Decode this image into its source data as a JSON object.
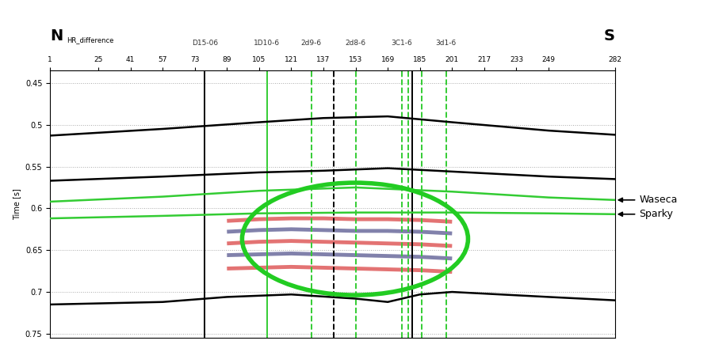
{
  "chart_data": {
    "type": "line",
    "title_left": "N",
    "title_right": "S",
    "section_label": "HR_difference",
    "ylabel": "Time [s]",
    "xlim": [
      1,
      282
    ],
    "xticks": [
      1,
      25,
      41,
      57,
      73,
      89,
      105,
      121,
      137,
      153,
      169,
      185,
      201,
      217,
      233,
      249,
      282
    ],
    "ylim": [
      0.755,
      0.435
    ],
    "yticks": [
      0.45,
      0.5,
      0.55,
      0.6,
      0.65,
      0.7,
      0.75
    ],
    "grid": true,
    "series": [
      {
        "color": "#000000",
        "line_style": "solid",
        "x": [
          1,
          57,
          105,
          137,
          169,
          201,
          249,
          282
        ],
        "values": [
          0.513,
          0.505,
          0.497,
          0.492,
          0.49,
          0.497,
          0.507,
          0.512
        ]
      },
      {
        "color": "#000000",
        "line_style": "solid",
        "x": [
          1,
          57,
          105,
          137,
          169,
          201,
          249,
          282
        ],
        "values": [
          0.567,
          0.562,
          0.557,
          0.555,
          0.552,
          0.556,
          0.562,
          0.565
        ]
      },
      {
        "name": "Waseca",
        "color": "#33cc33",
        "line_style": "solid",
        "x": [
          1,
          57,
          105,
          153,
          201,
          249,
          282
        ],
        "values": [
          0.592,
          0.586,
          0.579,
          0.575,
          0.58,
          0.587,
          0.59
        ]
      },
      {
        "name": "Sparky",
        "color": "#33cc33",
        "line_style": "solid",
        "x": [
          1,
          57,
          105,
          153,
          201,
          249,
          282
        ],
        "values": [
          0.612,
          0.609,
          0.606,
          0.605,
          0.605,
          0.606,
          0.607
        ]
      },
      {
        "color": "#000000",
        "line_style": "solid",
        "x": [
          1,
          57,
          89,
          121,
          153,
          169,
          185,
          201,
          249,
          282
        ],
        "values": [
          0.715,
          0.712,
          0.706,
          0.703,
          0.708,
          0.712,
          0.703,
          0.7,
          0.706,
          0.71
        ]
      }
    ],
    "reflectors": [
      {
        "color": "#cc0000",
        "x": [
          89,
          105,
          121,
          137,
          153,
          169,
          185,
          201
        ],
        "values": [
          0.615,
          0.613,
          0.612,
          0.612,
          0.613,
          0.613,
          0.614,
          0.616
        ]
      },
      {
        "color": "#1a1a66",
        "x": [
          89,
          105,
          121,
          137,
          153,
          169,
          185,
          201
        ],
        "values": [
          0.628,
          0.626,
          0.625,
          0.626,
          0.627,
          0.627,
          0.628,
          0.63
        ]
      },
      {
        "color": "#cc0000",
        "x": [
          89,
          105,
          121,
          137,
          153,
          169,
          185,
          201
        ],
        "values": [
          0.642,
          0.64,
          0.639,
          0.64,
          0.641,
          0.642,
          0.643,
          0.645
        ]
      },
      {
        "color": "#1a1a66",
        "x": [
          89,
          105,
          121,
          137,
          153,
          169,
          185,
          201
        ],
        "values": [
          0.656,
          0.655,
          0.654,
          0.655,
          0.656,
          0.657,
          0.658,
          0.66
        ]
      },
      {
        "color": "#cc0000",
        "x": [
          89,
          105,
          121,
          137,
          153,
          169,
          185,
          201
        ],
        "values": [
          0.672,
          0.671,
          0.67,
          0.671,
          0.672,
          0.673,
          0.674,
          0.676
        ]
      }
    ],
    "wells": [
      {
        "name": "D15-06",
        "x": 78,
        "color": "#000000",
        "line_style": "solid"
      },
      {
        "name": "1D10-6",
        "x": 109,
        "color": "#33cc33",
        "line_style": "solid"
      },
      {
        "name": "2d9-6",
        "x": 131,
        "color": "#33cc33",
        "line_style": "dashed"
      },
      {
        "x": 142,
        "color": "#000000",
        "line_style": "dashed"
      },
      {
        "name": "2d8-6",
        "x": 153,
        "color": "#33cc33",
        "line_style": "dashed"
      },
      {
        "name": "3C1-6",
        "x": 176,
        "color": "#33cc33",
        "line_style": "dashed"
      },
      {
        "x": 179,
        "color": "#33cc33",
        "line_style": "dashed"
      },
      {
        "x": 181,
        "color": "#000000",
        "line_style": "solid"
      },
      {
        "x": 186,
        "color": "#33cc33",
        "line_style": "dashed"
      },
      {
        "name": "3d1-6",
        "x": 198,
        "color": "#33cc33",
        "line_style": "dashed"
      }
    ]
  }
}
